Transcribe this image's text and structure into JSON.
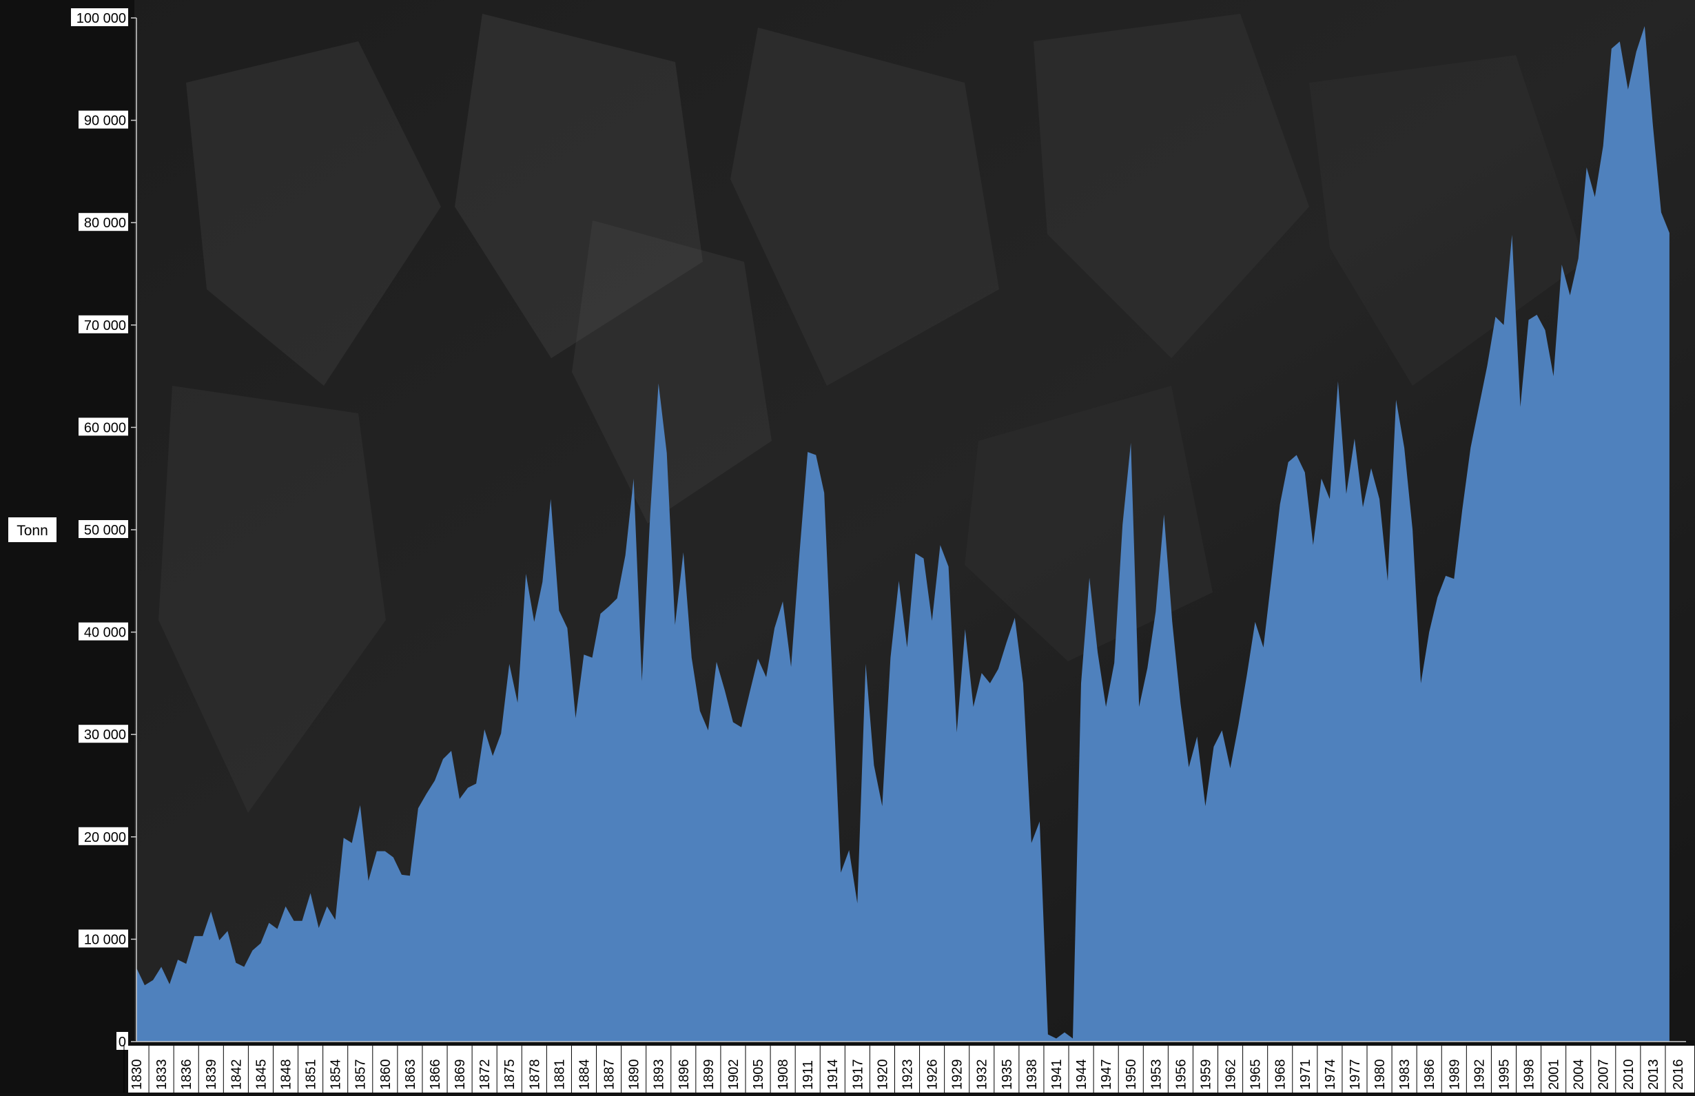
{
  "chart_data": {
    "type": "area",
    "ylabel": "Tonn",
    "x_start": 1830,
    "x_end": 2017,
    "ylim": [
      0,
      100000
    ],
    "yticks": [
      0,
      10000,
      20000,
      30000,
      40000,
      50000,
      60000,
      70000,
      80000,
      90000,
      100000
    ],
    "ytick_labels": [
      "0",
      "10 000",
      "20 000",
      "30 000",
      "40 000",
      "50 000",
      "60 000",
      "70 000",
      "80 000",
      "90 000",
      "100 000"
    ],
    "xtick_labels": [
      "1830",
      "1833",
      "1836",
      "1839",
      "1842",
      "1845",
      "1848",
      "1851",
      "1854",
      "1857",
      "1860",
      "1863",
      "1866",
      "1869",
      "1872",
      "1875",
      "1878",
      "1881",
      "1884",
      "1887",
      "1890",
      "1893",
      "1896",
      "1899",
      "1902",
      "1905",
      "1908",
      "1911",
      "1914",
      "1917",
      "1920",
      "1923",
      "1926",
      "1929",
      "1932",
      "1935",
      "1938",
      "1941",
      "1944",
      "1947",
      "1950",
      "1953",
      "1956",
      "1959",
      "1962",
      "1965",
      "1968",
      "1971",
      "1974",
      "1977",
      "1980",
      "1983",
      "1986",
      "1989",
      "1992",
      "1995",
      "1998",
      "2001",
      "2004",
      "2007",
      "2010",
      "2013",
      "2016"
    ],
    "grid": false,
    "background": "dark photo of dried fish (stockfish)",
    "series": [
      {
        "name": "",
        "color": "#4f81bd",
        "points": [
          [
            1830,
            7200
          ],
          [
            1831,
            5500
          ],
          [
            1832,
            6000
          ],
          [
            1833,
            7300
          ],
          [
            1834,
            5600
          ],
          [
            1835,
            8000
          ],
          [
            1836,
            7600
          ],
          [
            1837,
            10300
          ],
          [
            1838,
            10300
          ],
          [
            1839,
            12700
          ],
          [
            1840,
            9900
          ],
          [
            1841,
            10800
          ],
          [
            1842,
            7700
          ],
          [
            1843,
            7300
          ],
          [
            1844,
            8900
          ],
          [
            1845,
            9600
          ],
          [
            1846,
            11600
          ],
          [
            1847,
            11000
          ],
          [
            1848,
            13200
          ],
          [
            1849,
            11800
          ],
          [
            1850,
            11800
          ],
          [
            1851,
            14500
          ],
          [
            1852,
            11100
          ],
          [
            1853,
            13200
          ],
          [
            1854,
            11900
          ],
          [
            1855,
            19900
          ],
          [
            1856,
            19400
          ],
          [
            1857,
            23100
          ],
          [
            1858,
            15700
          ],
          [
            1859,
            18600
          ],
          [
            1860,
            18600
          ],
          [
            1861,
            18000
          ],
          [
            1862,
            16300
          ],
          [
            1863,
            16200
          ],
          [
            1864,
            22800
          ],
          [
            1865,
            24200
          ],
          [
            1866,
            25500
          ],
          [
            1867,
            27600
          ],
          [
            1868,
            28400
          ],
          [
            1869,
            23700
          ],
          [
            1870,
            24800
          ],
          [
            1871,
            25200
          ],
          [
            1872,
            30500
          ],
          [
            1873,
            27900
          ],
          [
            1874,
            30100
          ],
          [
            1875,
            36900
          ],
          [
            1876,
            33100
          ],
          [
            1877,
            45700
          ],
          [
            1878,
            41000
          ],
          [
            1879,
            44900
          ],
          [
            1880,
            53000
          ],
          [
            1881,
            42100
          ],
          [
            1882,
            40400
          ],
          [
            1883,
            31600
          ],
          [
            1884,
            37800
          ],
          [
            1885,
            37500
          ],
          [
            1886,
            41800
          ],
          [
            1887,
            42500
          ],
          [
            1888,
            43300
          ],
          [
            1889,
            47500
          ],
          [
            1890,
            55000
          ],
          [
            1891,
            35200
          ],
          [
            1892,
            51600
          ],
          [
            1893,
            64300
          ],
          [
            1894,
            57500
          ],
          [
            1895,
            40700
          ],
          [
            1896,
            47800
          ],
          [
            1897,
            37500
          ],
          [
            1898,
            32300
          ],
          [
            1899,
            30400
          ],
          [
            1900,
            37100
          ],
          [
            1901,
            34300
          ],
          [
            1902,
            31200
          ],
          [
            1903,
            30700
          ],
          [
            1904,
            34100
          ],
          [
            1905,
            37400
          ],
          [
            1906,
            35600
          ],
          [
            1907,
            40400
          ],
          [
            1908,
            43000
          ],
          [
            1909,
            36600
          ],
          [
            1910,
            47500
          ],
          [
            1911,
            57600
          ],
          [
            1912,
            57300
          ],
          [
            1913,
            53600
          ],
          [
            1914,
            35000
          ],
          [
            1915,
            16500
          ],
          [
            1916,
            18700
          ],
          [
            1917,
            13500
          ],
          [
            1918,
            36900
          ],
          [
            1919,
            27000
          ],
          [
            1920,
            23000
          ],
          [
            1921,
            37500
          ],
          [
            1922,
            45000
          ],
          [
            1923,
            38500
          ],
          [
            1924,
            47700
          ],
          [
            1925,
            47200
          ],
          [
            1926,
            41100
          ],
          [
            1927,
            48500
          ],
          [
            1928,
            46400
          ],
          [
            1929,
            30200
          ],
          [
            1930,
            40300
          ],
          [
            1931,
            32700
          ],
          [
            1932,
            36000
          ],
          [
            1933,
            35000
          ],
          [
            1934,
            36400
          ],
          [
            1935,
            39000
          ],
          [
            1936,
            41400
          ],
          [
            1937,
            35000
          ],
          [
            1938,
            19400
          ],
          [
            1939,
            21500
          ],
          [
            1940,
            700
          ],
          [
            1941,
            300
          ],
          [
            1942,
            900
          ],
          [
            1943,
            300
          ],
          [
            1944,
            35000
          ],
          [
            1945,
            45300
          ],
          [
            1946,
            38000
          ],
          [
            1947,
            32700
          ],
          [
            1948,
            37000
          ],
          [
            1949,
            50500
          ],
          [
            1950,
            58500
          ],
          [
            1951,
            32700
          ],
          [
            1952,
            36500
          ],
          [
            1953,
            42000
          ],
          [
            1954,
            51500
          ],
          [
            1955,
            41000
          ],
          [
            1956,
            33000
          ],
          [
            1957,
            26800
          ],
          [
            1958,
            29800
          ],
          [
            1959,
            23000
          ],
          [
            1960,
            28800
          ],
          [
            1961,
            30400
          ],
          [
            1962,
            26700
          ],
          [
            1963,
            31000
          ],
          [
            1964,
            35800
          ],
          [
            1965,
            41000
          ],
          [
            1966,
            38500
          ],
          [
            1967,
            45500
          ],
          [
            1968,
            52500
          ],
          [
            1969,
            56600
          ],
          [
            1970,
            57300
          ],
          [
            1971,
            55600
          ],
          [
            1972,
            48500
          ],
          [
            1973,
            55000
          ],
          [
            1974,
            53000
          ],
          [
            1975,
            64500
          ],
          [
            1976,
            53500
          ],
          [
            1977,
            58900
          ],
          [
            1978,
            52200
          ],
          [
            1979,
            56000
          ],
          [
            1980,
            53000
          ],
          [
            1981,
            45000
          ],
          [
            1982,
            62700
          ],
          [
            1983,
            58000
          ],
          [
            1984,
            50000
          ],
          [
            1985,
            35000
          ],
          [
            1986,
            40000
          ],
          [
            1987,
            43400
          ],
          [
            1988,
            45500
          ],
          [
            1989,
            45200
          ],
          [
            1990,
            52000
          ],
          [
            1991,
            58000
          ],
          [
            1992,
            62000
          ],
          [
            1993,
            66000
          ],
          [
            1994,
            70800
          ],
          [
            1995,
            70000
          ],
          [
            1996,
            78800
          ],
          [
            1997,
            62000
          ],
          [
            1998,
            70500
          ],
          [
            1999,
            71000
          ],
          [
            2000,
            69500
          ],
          [
            2001,
            65000
          ],
          [
            2002,
            75900
          ],
          [
            2003,
            72900
          ],
          [
            2004,
            76500
          ],
          [
            2005,
            85400
          ],
          [
            2006,
            82500
          ],
          [
            2007,
            87500
          ],
          [
            2008,
            97000
          ],
          [
            2009,
            97700
          ],
          [
            2010,
            93000
          ],
          [
            2011,
            96700
          ],
          [
            2012,
            99200
          ],
          [
            2013,
            89500
          ],
          [
            2014,
            81000
          ],
          [
            2015,
            79000
          ]
        ]
      }
    ]
  }
}
